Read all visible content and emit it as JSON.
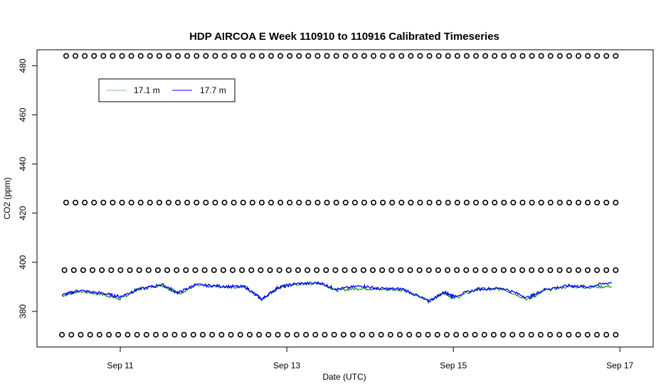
{
  "chart_data": {
    "type": "line",
    "title": "HDP AIRCOA E  Week 110910 to 110916  Calibrated Timeseries",
    "xlabel": "Date (UTC)",
    "ylabel": "CO2 (ppm)",
    "x_unit": "days since Sep 10 00:00 UTC",
    "xlim": [
      0.0,
      7.4
    ],
    "ylim": [
      365.5,
      486.5
    ],
    "x_ticks": [
      {
        "value": 1,
        "label": "Sep 11"
      },
      {
        "value": 3,
        "label": "Sep 13"
      },
      {
        "value": 5,
        "label": "Sep 15"
      },
      {
        "value": 7,
        "label": "Sep 17"
      }
    ],
    "y_ticks": [
      {
        "value": 380,
        "label": "380"
      },
      {
        "value": 400,
        "label": "400"
      },
      {
        "value": 420,
        "label": "420"
      },
      {
        "value": 440,
        "label": "440"
      },
      {
        "value": 460,
        "label": "460"
      },
      {
        "value": 480,
        "label": "480"
      }
    ],
    "legend": {
      "position": "top-left",
      "entries": [
        {
          "label": "17.1 m",
          "color": "#008000"
        },
        {
          "label": "17.7 m",
          "color": "#0000ff"
        }
      ]
    },
    "series": [
      {
        "name": "17.1 m",
        "color": "#008000",
        "x": [
          0.3,
          0.5,
          0.8,
          1.0,
          1.2,
          1.5,
          1.7,
          1.9,
          2.2,
          2.5,
          2.7,
          2.9,
          3.1,
          3.4,
          3.6,
          3.9,
          4.1,
          4.4,
          4.7,
          4.9,
          5.0,
          5.3,
          5.6,
          5.9,
          6.1,
          6.4,
          6.6,
          6.9
        ],
        "values": [
          386.3,
          388.2,
          386.8,
          385.0,
          388.9,
          390.7,
          387.1,
          390.5,
          390.0,
          389.8,
          384.9,
          389.5,
          391.0,
          391.5,
          388.6,
          389.4,
          389.0,
          388.8,
          384.5,
          387.6,
          385.2,
          389.2,
          389.0,
          384.8,
          388.6,
          390.2,
          389.8,
          390.2
        ]
      },
      {
        "name": "17.7 m",
        "color": "#0000ff",
        "x": [
          0.3,
          0.5,
          0.8,
          1.0,
          1.2,
          1.5,
          1.7,
          1.9,
          2.2,
          2.5,
          2.7,
          2.9,
          3.1,
          3.4,
          3.6,
          3.9,
          4.1,
          4.4,
          4.7,
          4.9,
          5.0,
          5.3,
          5.6,
          5.9,
          6.1,
          6.4,
          6.6,
          6.9
        ],
        "values": [
          386.6,
          388.5,
          387.3,
          386.0,
          388.8,
          391.0,
          387.6,
          390.8,
          390.3,
          390.0,
          385.0,
          389.9,
          391.2,
          391.6,
          389.0,
          390.4,
          389.3,
          389.1,
          384.0,
          388.0,
          386.2,
          389.1,
          389.4,
          385.6,
          389.0,
          390.5,
          390.0,
          391.8
        ]
      },
      {
        "name": "",
        "type": "scatter",
        "marker": "open-circle",
        "color": "#000000",
        "x_start": 0.35,
        "x_end": 6.95,
        "count": 60,
        "values_const": 484
      },
      {
        "name": "",
        "type": "scatter",
        "marker": "open-circle",
        "color": "#000000",
        "x_start": 0.35,
        "x_end": 6.95,
        "count": 60,
        "values_const": 424.3
      },
      {
        "name": "",
        "type": "scatter",
        "marker": "open-circle",
        "color": "#000000",
        "x_start": 0.33,
        "x_end": 6.95,
        "count": 60,
        "values_const": 396.8
      },
      {
        "name": "",
        "type": "scatter",
        "marker": "open-circle",
        "color": "#000000",
        "x_start": 0.3,
        "x_end": 6.95,
        "count": 60,
        "values_const": 370.5
      }
    ]
  }
}
